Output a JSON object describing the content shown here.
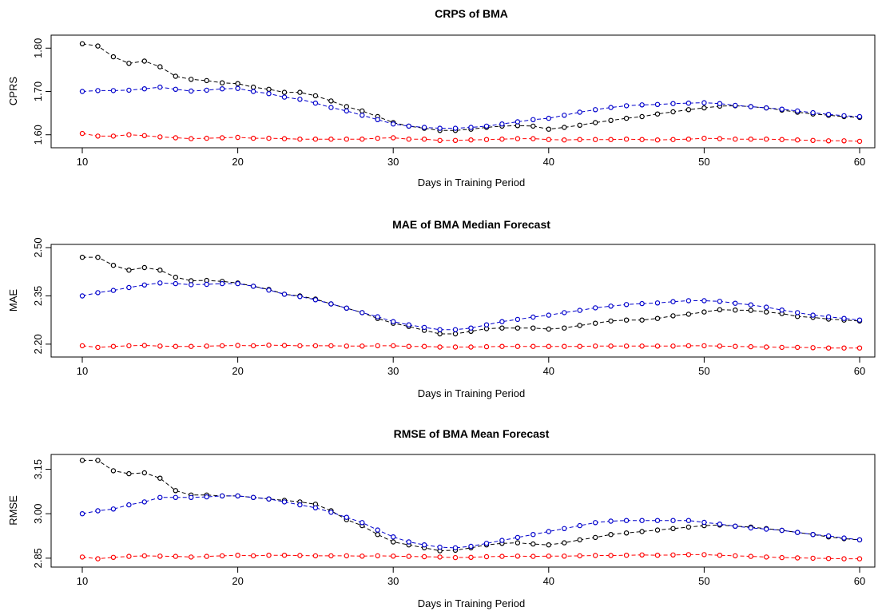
{
  "chart_data": [
    {
      "type": "line",
      "title": "CRPS of BMA",
      "xlabel": "Days in Training Period",
      "ylabel": "CPRS",
      "xlim": [
        10,
        60
      ],
      "ylim": [
        1.57,
        1.83
      ],
      "xticks": [
        "10",
        "20",
        "30",
        "40",
        "50",
        "60"
      ],
      "yticks": [
        "1.60",
        "1.70",
        "1.80"
      ],
      "grid": false,
      "legend": "none",
      "x": [
        10,
        11,
        12,
        13,
        14,
        15,
        16,
        17,
        18,
        19,
        20,
        21,
        22,
        23,
        24,
        25,
        26,
        27,
        28,
        29,
        30,
        31,
        32,
        33,
        34,
        35,
        36,
        37,
        38,
        39,
        40,
        41,
        42,
        43,
        44,
        45,
        46,
        47,
        48,
        49,
        50,
        51,
        52,
        53,
        54,
        55,
        56,
        57,
        58,
        59,
        60
      ],
      "series": [
        {
          "color": "#000000",
          "values": [
            1.81,
            1.805,
            1.78,
            1.765,
            1.77,
            1.757,
            1.735,
            1.728,
            1.725,
            1.72,
            1.718,
            1.71,
            1.705,
            1.698,
            1.698,
            1.69,
            1.678,
            1.665,
            1.655,
            1.642,
            1.628,
            1.62,
            1.615,
            1.61,
            1.61,
            1.613,
            1.617,
            1.62,
            1.621,
            1.62,
            1.613,
            1.617,
            1.622,
            1.628,
            1.633,
            1.638,
            1.642,
            1.648,
            1.653,
            1.658,
            1.662,
            1.666,
            1.667,
            1.665,
            1.662,
            1.657,
            1.652,
            1.648,
            1.645,
            1.642,
            1.64
          ]
        },
        {
          "color": "#0000cc",
          "values": [
            1.7,
            1.702,
            1.702,
            1.703,
            1.706,
            1.71,
            1.705,
            1.701,
            1.703,
            1.706,
            1.707,
            1.7,
            1.695,
            1.687,
            1.682,
            1.673,
            1.663,
            1.655,
            1.645,
            1.635,
            1.625,
            1.62,
            1.617,
            1.615,
            1.615,
            1.617,
            1.62,
            1.625,
            1.63,
            1.635,
            1.638,
            1.645,
            1.652,
            1.658,
            1.663,
            1.667,
            1.669,
            1.67,
            1.672,
            1.673,
            1.674,
            1.672,
            1.668,
            1.665,
            1.662,
            1.659,
            1.655,
            1.651,
            1.647,
            1.644,
            1.642
          ]
        },
        {
          "color": "#ff0000",
          "values": [
            1.603,
            1.597,
            1.597,
            1.6,
            1.598,
            1.595,
            1.593,
            1.591,
            1.592,
            1.593,
            1.594,
            1.592,
            1.592,
            1.591,
            1.59,
            1.59,
            1.59,
            1.59,
            1.59,
            1.592,
            1.593,
            1.59,
            1.59,
            1.587,
            1.587,
            1.588,
            1.589,
            1.59,
            1.591,
            1.591,
            1.589,
            1.588,
            1.589,
            1.589,
            1.589,
            1.59,
            1.589,
            1.588,
            1.589,
            1.59,
            1.592,
            1.591,
            1.59,
            1.59,
            1.59,
            1.589,
            1.588,
            1.587,
            1.586,
            1.586,
            1.585
          ]
        }
      ]
    },
    {
      "type": "line",
      "title": "MAE of BMA Median Forecast",
      "xlabel": "Days in Training Period",
      "ylabel": "MAE",
      "xlim": [
        10,
        60
      ],
      "ylim": [
        2.16,
        2.51
      ],
      "xticks": [
        "10",
        "20",
        "30",
        "40",
        "50",
        "60"
      ],
      "yticks": [
        "2.20",
        "2.35",
        "2.50"
      ],
      "grid": false,
      "legend": "none",
      "x": [
        10,
        11,
        12,
        13,
        14,
        15,
        16,
        17,
        18,
        19,
        20,
        21,
        22,
        23,
        24,
        25,
        26,
        27,
        28,
        29,
        30,
        31,
        32,
        33,
        34,
        35,
        36,
        37,
        38,
        39,
        40,
        41,
        42,
        43,
        44,
        45,
        46,
        47,
        48,
        49,
        50,
        51,
        52,
        53,
        54,
        55,
        56,
        57,
        58,
        59,
        60
      ],
      "series": [
        {
          "color": "#000000",
          "values": [
            2.47,
            2.47,
            2.445,
            2.43,
            2.438,
            2.43,
            2.408,
            2.397,
            2.398,
            2.395,
            2.39,
            2.38,
            2.37,
            2.355,
            2.35,
            2.34,
            2.325,
            2.312,
            2.298,
            2.28,
            2.265,
            2.255,
            2.243,
            2.232,
            2.232,
            2.24,
            2.248,
            2.25,
            2.25,
            2.25,
            2.247,
            2.25,
            2.258,
            2.265,
            2.272,
            2.275,
            2.275,
            2.28,
            2.288,
            2.293,
            2.3,
            2.307,
            2.306,
            2.305,
            2.3,
            2.295,
            2.286,
            2.283,
            2.278,
            2.275,
            2.272
          ]
        },
        {
          "color": "#0000cc",
          "values": [
            2.35,
            2.36,
            2.367,
            2.376,
            2.384,
            2.39,
            2.388,
            2.385,
            2.386,
            2.388,
            2.388,
            2.38,
            2.368,
            2.355,
            2.348,
            2.338,
            2.325,
            2.312,
            2.298,
            2.285,
            2.27,
            2.26,
            2.252,
            2.245,
            2.245,
            2.25,
            2.26,
            2.27,
            2.277,
            2.284,
            2.29,
            2.298,
            2.305,
            2.313,
            2.318,
            2.323,
            2.326,
            2.328,
            2.332,
            2.335,
            2.335,
            2.333,
            2.327,
            2.322,
            2.315,
            2.306,
            2.298,
            2.29,
            2.285,
            2.28,
            2.275
          ]
        },
        {
          "color": "#ff0000",
          "values": [
            2.195,
            2.19,
            2.193,
            2.195,
            2.196,
            2.194,
            2.193,
            2.193,
            2.194,
            2.195,
            2.196,
            2.195,
            2.197,
            2.196,
            2.195,
            2.195,
            2.195,
            2.194,
            2.194,
            2.195,
            2.195,
            2.193,
            2.193,
            2.191,
            2.191,
            2.191,
            2.192,
            2.193,
            2.193,
            2.193,
            2.193,
            2.193,
            2.193,
            2.194,
            2.194,
            2.194,
            2.194,
            2.194,
            2.194,
            2.195,
            2.195,
            2.194,
            2.193,
            2.192,
            2.191,
            2.19,
            2.19,
            2.189,
            2.188,
            2.188,
            2.188
          ]
        }
      ]
    },
    {
      "type": "line",
      "title": "RMSE of BMA Mean Forecast",
      "xlabel": "Days in Training Period",
      "ylabel": "RMSE",
      "xlim": [
        10,
        60
      ],
      "ylim": [
        2.82,
        3.2
      ],
      "xticks": [
        "10",
        "20",
        "30",
        "40",
        "50",
        "60"
      ],
      "yticks": [
        "2.85",
        "3.00",
        "3.15"
      ],
      "grid": false,
      "legend": "none",
      "x": [
        10,
        11,
        12,
        13,
        14,
        15,
        16,
        17,
        18,
        19,
        20,
        21,
        22,
        23,
        24,
        25,
        26,
        27,
        28,
        29,
        30,
        31,
        32,
        33,
        34,
        35,
        36,
        37,
        38,
        39,
        40,
        41,
        42,
        43,
        44,
        45,
        46,
        47,
        48,
        49,
        50,
        51,
        52,
        53,
        54,
        55,
        56,
        57,
        58,
        59,
        60
      ],
      "series": [
        {
          "color": "#000000",
          "values": [
            3.18,
            3.18,
            3.145,
            3.135,
            3.138,
            3.12,
            3.078,
            3.063,
            3.063,
            3.06,
            3.06,
            3.055,
            3.05,
            3.045,
            3.04,
            3.032,
            3.01,
            2.98,
            2.96,
            2.93,
            2.905,
            2.895,
            2.885,
            2.875,
            2.877,
            2.885,
            2.895,
            2.9,
            2.902,
            2.898,
            2.895,
            2.902,
            2.912,
            2.92,
            2.93,
            2.935,
            2.94,
            2.945,
            2.95,
            2.955,
            2.96,
            2.962,
            2.958,
            2.955,
            2.95,
            2.944,
            2.937,
            2.93,
            2.922,
            2.916,
            2.912
          ]
        },
        {
          "color": "#0000cc",
          "values": [
            3.0,
            3.01,
            3.016,
            3.03,
            3.04,
            3.055,
            3.055,
            3.055,
            3.057,
            3.06,
            3.06,
            3.055,
            3.05,
            3.04,
            3.03,
            3.02,
            3.005,
            2.988,
            2.97,
            2.945,
            2.922,
            2.905,
            2.895,
            2.887,
            2.885,
            2.89,
            2.9,
            2.91,
            2.92,
            2.93,
            2.94,
            2.95,
            2.96,
            2.97,
            2.975,
            2.977,
            2.977,
            2.977,
            2.977,
            2.977,
            2.971,
            2.965,
            2.958,
            2.952,
            2.948,
            2.944,
            2.937,
            2.93,
            2.925,
            2.918,
            2.912
          ]
        },
        {
          "color": "#ff0000",
          "values": [
            2.854,
            2.848,
            2.853,
            2.856,
            2.858,
            2.857,
            2.856,
            2.854,
            2.856,
            2.858,
            2.86,
            2.858,
            2.86,
            2.86,
            2.859,
            2.858,
            2.858,
            2.858,
            2.857,
            2.858,
            2.857,
            2.856,
            2.855,
            2.854,
            2.852,
            2.853,
            2.855,
            2.856,
            2.857,
            2.856,
            2.857,
            2.857,
            2.858,
            2.859,
            2.859,
            2.86,
            2.861,
            2.86,
            2.861,
            2.862,
            2.862,
            2.86,
            2.858,
            2.856,
            2.854,
            2.852,
            2.851,
            2.85,
            2.849,
            2.848,
            2.848
          ]
        }
      ]
    }
  ]
}
